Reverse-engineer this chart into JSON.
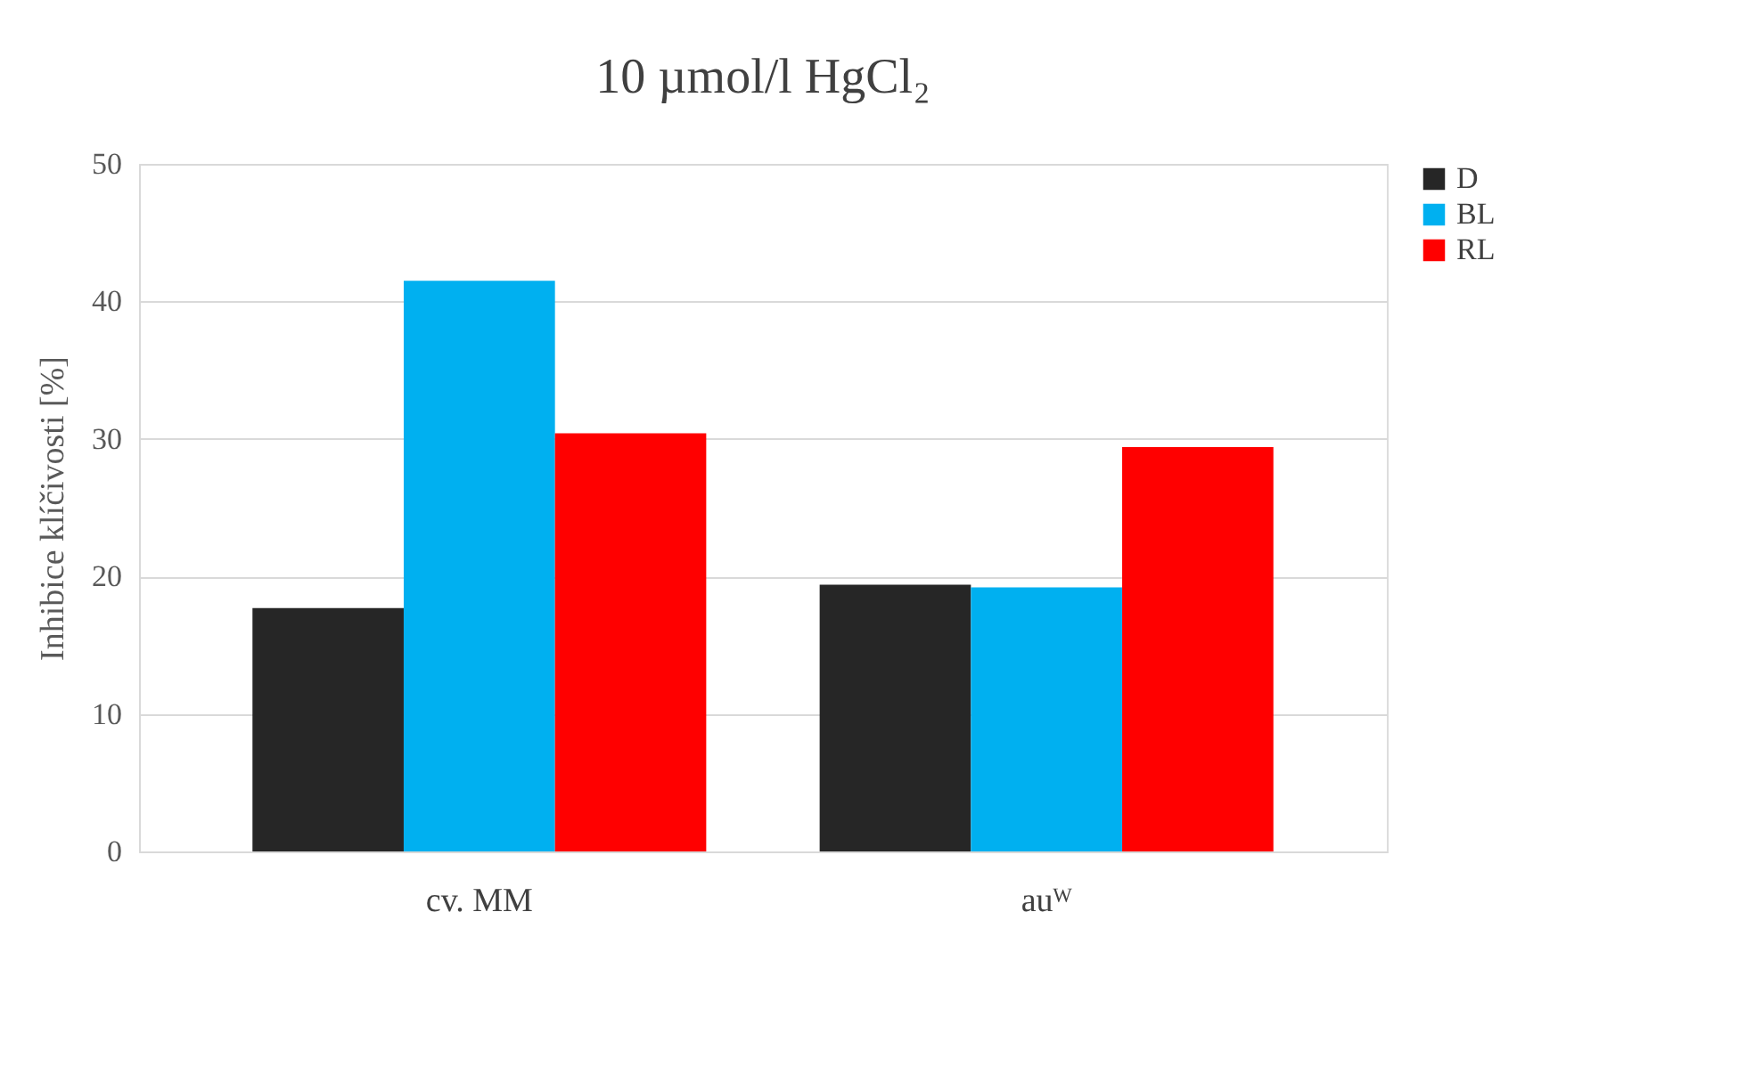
{
  "chart_data": {
    "type": "bar",
    "title": "10 µmol/l HgCl₂",
    "ylabel": "Inhibice klíčivosti [%]",
    "categories": [
      "cv. MM",
      "auᵂ"
    ],
    "series": [
      {
        "name": "D",
        "color": "#262626",
        "values": [
          17.7,
          19.4
        ]
      },
      {
        "name": "BL",
        "color": "#00b0f0",
        "values": [
          41.5,
          19.2
        ]
      },
      {
        "name": "RL",
        "color": "#ff0000",
        "values": [
          30.4,
          29.4
        ]
      }
    ],
    "ylim": [
      0,
      50
    ],
    "yticks": [
      0,
      10,
      20,
      30,
      40,
      50
    ],
    "grid": "y",
    "legend": "right"
  }
}
